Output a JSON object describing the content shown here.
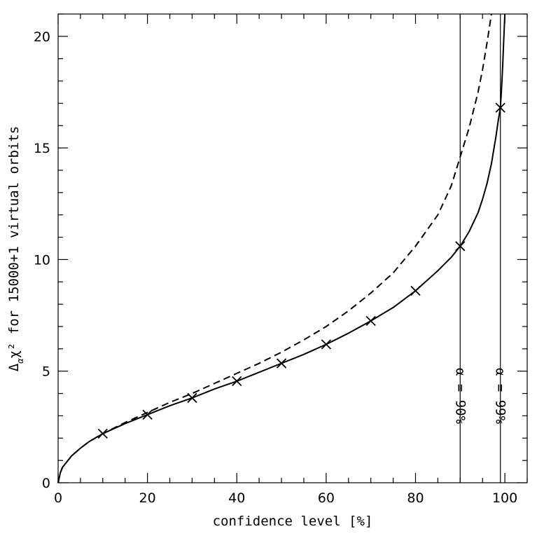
{
  "chart_data": {
    "type": "line",
    "title": "",
    "xlabel": "confidence level [%]",
    "ylabel": "Δ_α χ² for 15000+1 virtual orbits",
    "xlim": [
      0,
      105
    ],
    "ylim": [
      0,
      21
    ],
    "x_ticks": [
      0,
      20,
      40,
      60,
      80,
      100
    ],
    "y_ticks": [
      0,
      5,
      10,
      15,
      20
    ],
    "x_minor_step": 5,
    "y_minor_step": 1,
    "grid": false,
    "legend": "none",
    "series": [
      {
        "style": "solid",
        "x": [
          0,
          0.5,
          1,
          2,
          3,
          5,
          7,
          10,
          15,
          20,
          25,
          30,
          35,
          40,
          45,
          50,
          55,
          60,
          65,
          70,
          75,
          80,
          85,
          88,
          90,
          92,
          94,
          95,
          96,
          97,
          98,
          98.5,
          99,
          99.3,
          99.5,
          99.7,
          100
        ],
        "y": [
          0,
          0.45,
          0.7,
          0.95,
          1.2,
          1.55,
          1.85,
          2.2,
          2.65,
          3.05,
          3.45,
          3.8,
          4.2,
          4.55,
          4.95,
          5.35,
          5.75,
          6.2,
          6.7,
          7.25,
          7.85,
          8.6,
          9.5,
          10.1,
          10.6,
          11.25,
          12.1,
          12.7,
          13.4,
          14.3,
          15.5,
          16.2,
          16.8,
          17.8,
          18.6,
          19.6,
          21
        ]
      },
      {
        "style": "dashed",
        "x": [
          0,
          0.5,
          1,
          2,
          3,
          5,
          7,
          10,
          15,
          20,
          25,
          30,
          35,
          40,
          45,
          50,
          55,
          60,
          65,
          70,
          75,
          80,
          85,
          88,
          90,
          92,
          94,
          95,
          96,
          97
        ],
        "y": [
          0,
          0.45,
          0.7,
          0.95,
          1.2,
          1.55,
          1.85,
          2.2,
          2.7,
          3.15,
          3.6,
          4.0,
          4.45,
          4.9,
          5.35,
          5.85,
          6.4,
          7.0,
          7.7,
          8.5,
          9.4,
          10.6,
          12.0,
          13.3,
          14.6,
          15.9,
          17.5,
          18.5,
          19.7,
          21
        ]
      }
    ],
    "markers": {
      "symbol": "x",
      "x": [
        10,
        20,
        30,
        40,
        50,
        60,
        70,
        80,
        90,
        99
      ],
      "y": [
        2.2,
        3.05,
        3.8,
        4.55,
        5.35,
        6.2,
        7.25,
        8.6,
        10.6,
        16.8
      ]
    },
    "reference_lines": [
      {
        "x": 90,
        "label": "α = 90%"
      },
      {
        "x": 99,
        "label": "α = 99%"
      }
    ]
  }
}
